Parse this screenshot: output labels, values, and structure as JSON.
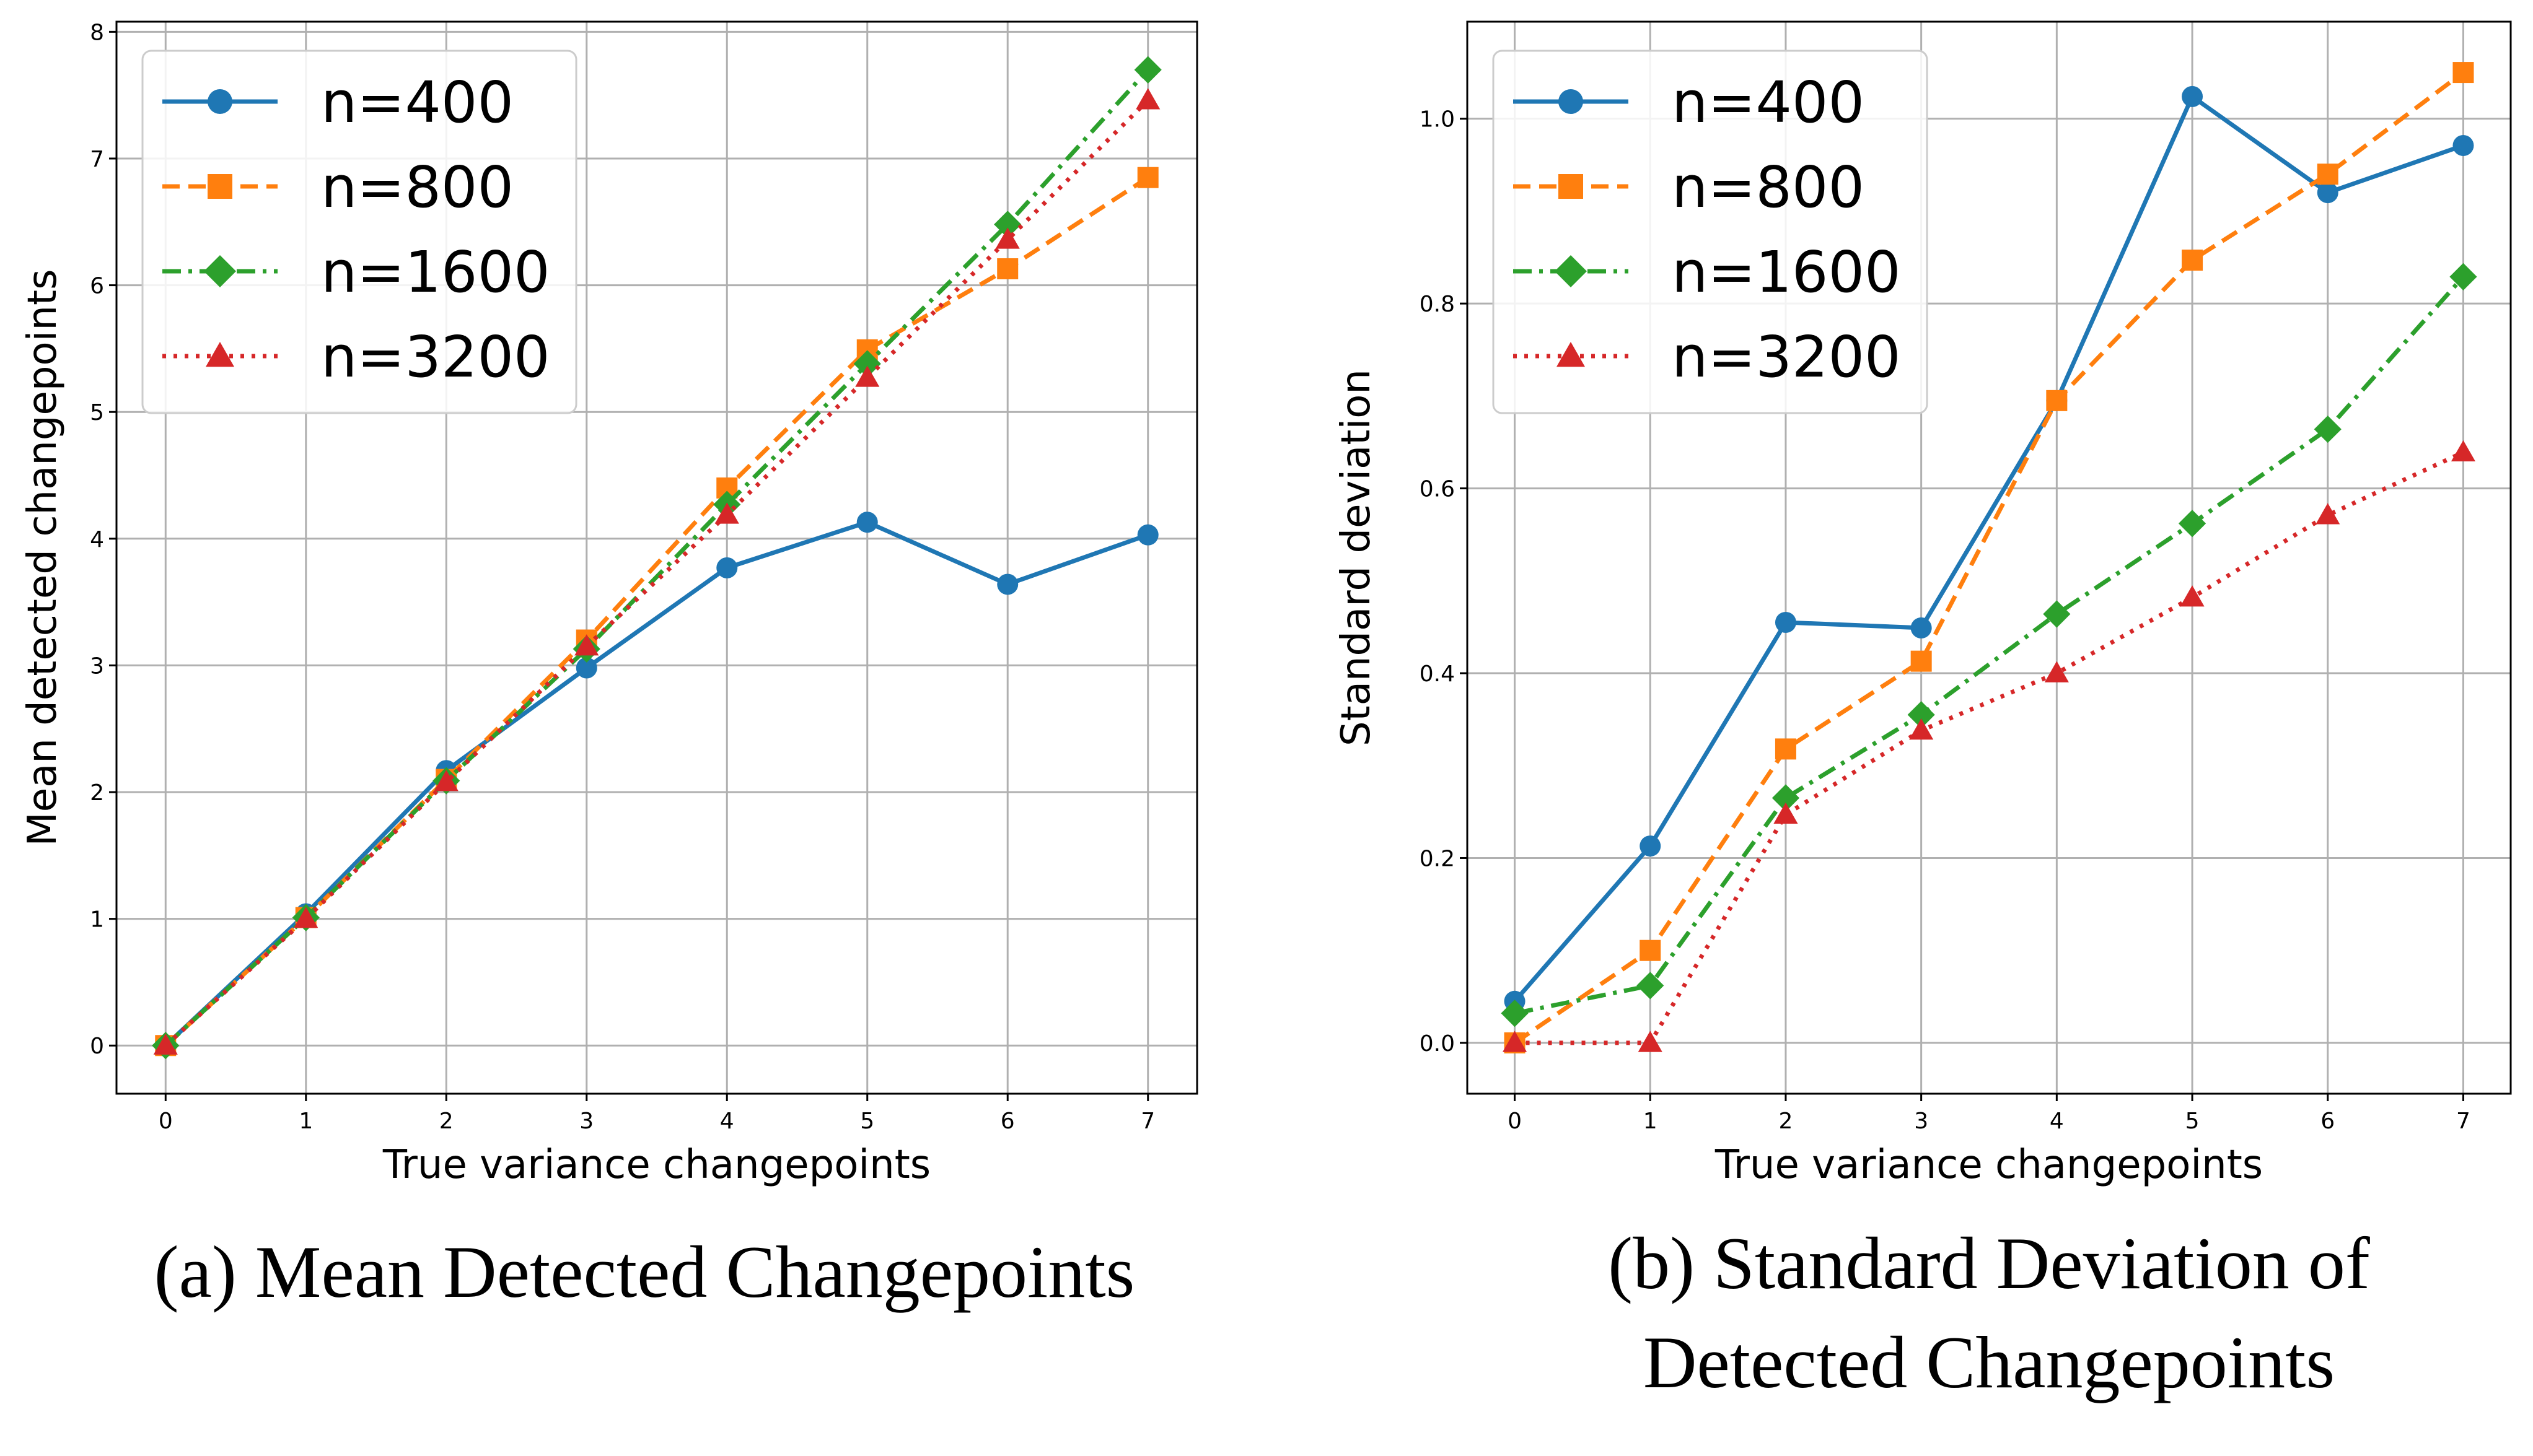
{
  "series_style": [
    {
      "color": "#1f77b4",
      "dash": "solid",
      "marker": "circle"
    },
    {
      "color": "#ff7f0e",
      "dash": "dashed",
      "marker": "square"
    },
    {
      "color": "#2ca02c",
      "dash": "dashdot",
      "marker": "diamond"
    },
    {
      "color": "#d62728",
      "dash": "dotted",
      "marker": "triangle"
    }
  ],
  "chart_data": [
    {
      "type": "line",
      "caption": "(a) Mean Detected Changepoints",
      "xlabel": "True variance changepoints",
      "ylabel": "Mean detected changepoints",
      "x": [
        0,
        1,
        2,
        3,
        4,
        5,
        6,
        7
      ],
      "xticks": [
        "0",
        "1",
        "2",
        "3",
        "4",
        "5",
        "6",
        "7"
      ],
      "yticks": [
        "0",
        "1",
        "2",
        "3",
        "4",
        "5",
        "6",
        "7",
        "8"
      ],
      "xlim": [
        -0.35,
        7.35
      ],
      "ylim": [
        -0.38,
        8.08
      ],
      "grid": true,
      "legend_position": "upper-left",
      "series": [
        {
          "name": "n=400",
          "values": [
            0.0,
            1.04,
            2.17,
            2.98,
            3.77,
            4.13,
            3.64,
            4.03
          ]
        },
        {
          "name": "n=800",
          "values": [
            0.0,
            1.01,
            2.1,
            3.2,
            4.4,
            5.49,
            6.13,
            6.85
          ]
        },
        {
          "name": "n=1600",
          "values": [
            0.0,
            1.01,
            2.09,
            3.13,
            4.27,
            5.38,
            6.48,
            7.7
          ]
        },
        {
          "name": "n=3200",
          "values": [
            0.0,
            1.0,
            2.08,
            3.15,
            4.19,
            5.27,
            6.36,
            7.46
          ]
        }
      ]
    },
    {
      "type": "line",
      "caption_lines": [
        "(b) Standard Deviation of",
        "Detected Changepoints"
      ],
      "xlabel": "True variance changepoints",
      "ylabel": "Standard deviation",
      "x": [
        0,
        1,
        2,
        3,
        4,
        5,
        6,
        7
      ],
      "xticks": [
        "0",
        "1",
        "2",
        "3",
        "4",
        "5",
        "6",
        "7"
      ],
      "yticks": [
        "0.0",
        "0.2",
        "0.4",
        "0.6",
        "0.8",
        "1.0"
      ],
      "ytick_values": [
        0.0,
        0.2,
        0.4,
        0.6,
        0.8,
        1.0
      ],
      "xlim": [
        -0.35,
        7.35
      ],
      "ylim": [
        -0.055,
        1.105
      ],
      "grid": true,
      "legend_position": "upper-left",
      "series": [
        {
          "name": "n=400",
          "values": [
            0.045,
            0.213,
            0.455,
            0.449,
            0.695,
            1.024,
            0.92,
            0.971
          ]
        },
        {
          "name": "n=800",
          "values": [
            0.0,
            0.1,
            0.318,
            0.413,
            0.695,
            0.847,
            0.94,
            1.05
          ]
        },
        {
          "name": "n=1600",
          "values": [
            0.032,
            0.062,
            0.265,
            0.355,
            0.464,
            0.562,
            0.664,
            0.829
          ]
        },
        {
          "name": "n=3200",
          "values": [
            0.0,
            0.0,
            0.247,
            0.338,
            0.4,
            0.482,
            0.571,
            0.639
          ]
        }
      ]
    }
  ]
}
